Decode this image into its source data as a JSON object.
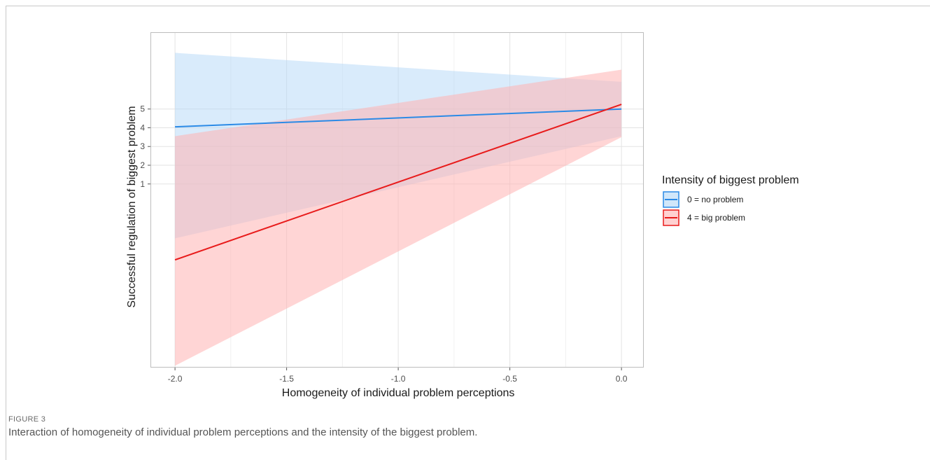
{
  "figure": {
    "label": "FIGURE 3",
    "caption": "Interaction of homogeneity of individual problem perceptions and the intensity of the biggest problem."
  },
  "chart_data": {
    "type": "line",
    "xlabel": "Homogeneity of individual problem perceptions",
    "ylabel": "Successful regulation of biggest problem",
    "xlim": [
      -2.11,
      0.1
    ],
    "ylim": [
      -8.8,
      9.1
    ],
    "x_ticks": [
      -2.0,
      -1.5,
      -1.0,
      -0.5,
      0.0
    ],
    "x_tick_labels": [
      "-2.0",
      "-1.5",
      "-1.0",
      "-0.5",
      "0.0"
    ],
    "y_ticks": [
      1,
      2,
      3,
      4,
      5
    ],
    "y_tick_labels": [
      "1",
      "2",
      "3",
      "4",
      "5"
    ],
    "grid": true,
    "legend": {
      "title": "Intensity of biggest problem",
      "position": "right"
    },
    "series": [
      {
        "name": "0 = no problem",
        "color": "#2b8ae6",
        "fill": "#b3d7f7",
        "x": [
          -2.0,
          0.0
        ],
        "y": [
          4.05,
          5.0
        ],
        "ci_lower": [
          -1.9,
          3.55
        ],
        "ci_upper": [
          8.0,
          6.45
        ]
      },
      {
        "name": "4 = big problem",
        "color": "#e81b1b",
        "fill": "#ffb3b3",
        "x": [
          -2.0,
          0.0
        ],
        "y": [
          -3.05,
          5.25
        ],
        "ci_lower": [
          -8.7,
          3.5
        ],
        "ci_upper": [
          3.55,
          7.1
        ]
      }
    ]
  }
}
